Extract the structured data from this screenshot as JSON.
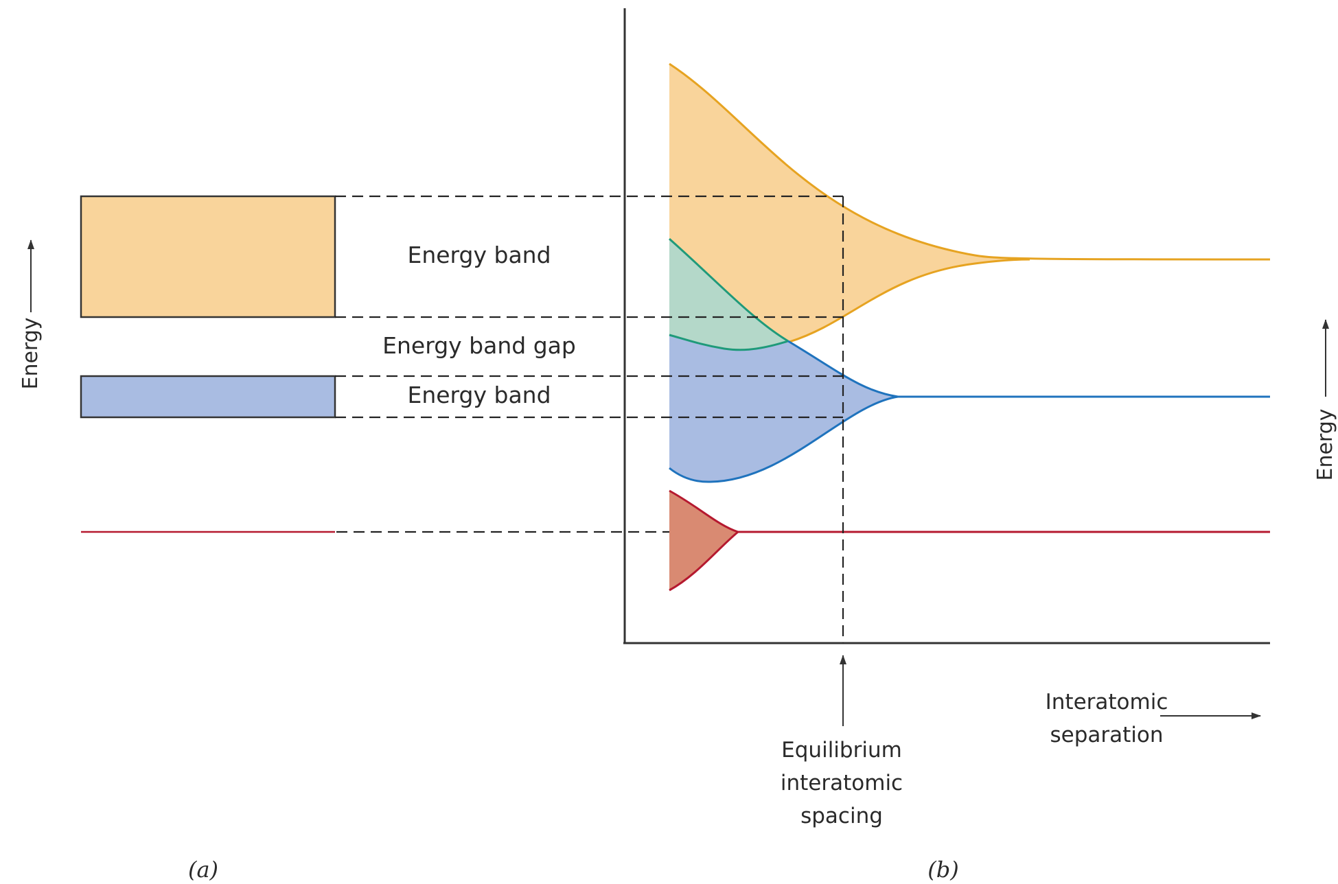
{
  "labels": {
    "energy_band_upper": "Energy band",
    "energy_band_gap": "Energy band gap",
    "energy_band_lower": "Energy band",
    "energy_left": "Energy",
    "energy_right": "Energy",
    "equilibrium_line1": "Equilibrium",
    "equilibrium_line2": "interatomic",
    "equilibrium_line3": "spacing",
    "separation_line1": "Interatomic",
    "separation_line2": "separation",
    "caption_a": "(a)",
    "caption_b": "(b)"
  },
  "colors": {
    "orange_fill": "#f9d49b",
    "orange_line": "#e6a321",
    "blue_fill": "#a9bce2",
    "blue_line": "#1f73bd",
    "teal_fill": "#b4d8c9",
    "teal_line": "#1f9a7a",
    "red_fill": "#d98a72",
    "red_line": "#b5192f",
    "axis": "#333333"
  }
}
